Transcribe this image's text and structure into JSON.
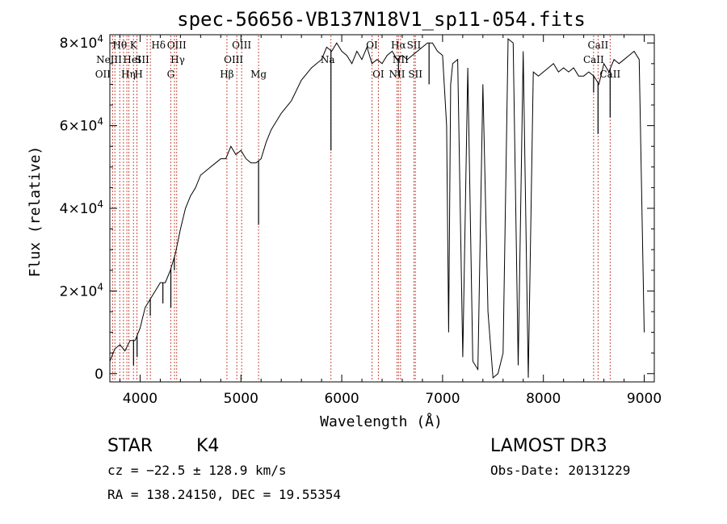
{
  "chart_data": {
    "type": "line",
    "title": "spec-56656-VB137N18V1_sp11-054.fits",
    "xlabel": "Wavelength (Å)",
    "ylabel": "Flux (relative)",
    "xlim": [
      3700,
      9100
    ],
    "ylim": [
      -2000,
      82000
    ],
    "xticks": [
      {
        "v": 4000,
        "label": "4000"
      },
      {
        "v": 5000,
        "label": "5000"
      },
      {
        "v": 6000,
        "label": "6000"
      },
      {
        "v": 7000,
        "label": "7000"
      },
      {
        "v": 8000,
        "label": "8000"
      },
      {
        "v": 9000,
        "label": "9000"
      }
    ],
    "yticks": [
      {
        "v": 0,
        "label": "0"
      },
      {
        "v": 20000,
        "mant": "2",
        "exp": "4"
      },
      {
        "v": 40000,
        "mant": "4",
        "exp": "4"
      },
      {
        "v": 60000,
        "mant": "6",
        "exp": "4"
      },
      {
        "v": 80000,
        "mant": "8",
        "exp": "4"
      }
    ],
    "spectrum": {
      "name": "flux",
      "x": [
        3700,
        3750,
        3800,
        3850,
        3900,
        3950,
        4000,
        4050,
        4100,
        4150,
        4200,
        4250,
        4300,
        4350,
        4400,
        4450,
        4500,
        4550,
        4600,
        4650,
        4700,
        4750,
        4800,
        4850,
        4900,
        4950,
        5000,
        5050,
        5100,
        5150,
        5200,
        5250,
        5300,
        5400,
        5500,
        5600,
        5700,
        5800,
        5850,
        5900,
        5950,
        6000,
        6050,
        6100,
        6150,
        6200,
        6250,
        6300,
        6350,
        6400,
        6450,
        6500,
        6550,
        6600,
        6650,
        6700,
        6750,
        6800,
        6850,
        6900,
        6950,
        7000,
        7040,
        7060,
        7080,
        7100,
        7150,
        7200,
        7250,
        7300,
        7350,
        7400,
        7450,
        7500,
        7550,
        7600,
        7650,
        7700,
        7750,
        7800,
        7850,
        7900,
        7950,
        8000,
        8050,
        8100,
        8150,
        8200,
        8250,
        8300,
        8350,
        8400,
        8450,
        8500,
        8550,
        8600,
        8650,
        8700,
        8750,
        8800,
        8850,
        8900,
        8950,
        9000
      ],
      "y": [
        3000,
        6000,
        7000,
        5500,
        8000,
        8000,
        11000,
        16000,
        18000,
        20000,
        22000,
        22000,
        25000,
        29000,
        35000,
        40000,
        43000,
        45000,
        48000,
        49000,
        50000,
        51000,
        52000,
        52000,
        55000,
        53000,
        54000,
        52000,
        51000,
        51000,
        52000,
        56000,
        59000,
        63000,
        66000,
        71000,
        74000,
        76000,
        79000,
        78000,
        80000,
        78000,
        77000,
        75000,
        78000,
        76000,
        79000,
        75000,
        76000,
        75000,
        77000,
        78000,
        76000,
        77000,
        76000,
        77000,
        78000,
        79000,
        80000,
        80000,
        78000,
        77000,
        60000,
        10000,
        70000,
        75000,
        76000,
        4000,
        74000,
        3000,
        1000,
        70000,
        15000,
        -1000,
        0,
        5000,
        81000,
        80000,
        2000,
        78000,
        -1000,
        73000,
        72000,
        73000,
        74000,
        75000,
        73000,
        74000,
        73000,
        74000,
        72000,
        72000,
        73000,
        72000,
        70000,
        75000,
        73000,
        76000,
        75000,
        76000,
        77000,
        78000,
        76000,
        10000
      ]
    },
    "dips": [
      {
        "x": 3935,
        "y": 2000
      },
      {
        "x": 3970,
        "y": 4000
      },
      {
        "x": 4101,
        "y": 14000
      },
      {
        "x": 4226,
        "y": 17000
      },
      {
        "x": 4305,
        "y": 16000
      },
      {
        "x": 4340,
        "y": 25000
      },
      {
        "x": 5175,
        "y": 36000
      },
      {
        "x": 5893,
        "y": 54000
      },
      {
        "x": 6563,
        "y": 72000
      },
      {
        "x": 6866,
        "y": 70000
      },
      {
        "x": 8498,
        "y": 68000
      },
      {
        "x": 8542,
        "y": 58000
      },
      {
        "x": 8662,
        "y": 62000
      }
    ],
    "lines": [
      {
        "x": 3727,
        "label": "OII",
        "row": 2,
        "dx": -12
      },
      {
        "x": 3750,
        "label": "",
        "row": 0,
        "dx": 0
      },
      {
        "x": 3798,
        "label": "Hθ",
        "row": 0,
        "dx": 0
      },
      {
        "x": 3835,
        "label": "Hη",
        "row": 2,
        "dx": 6
      },
      {
        "x": 3869,
        "label": "NeIII",
        "row": 1,
        "dx": -22
      },
      {
        "x": 3889,
        "label": "HeI",
        "row": 1,
        "dx": 4
      },
      {
        "x": 3934,
        "label": "K",
        "row": 0,
        "dx": 0
      },
      {
        "x": 3969,
        "label": "H",
        "row": 2,
        "dx": 2
      },
      {
        "x": 4069,
        "label": "SII",
        "row": 1,
        "dx": -6
      },
      {
        "x": 4102,
        "label": "Hδ",
        "row": 0,
        "dx": 10
      },
      {
        "x": 4304,
        "label": "G",
        "row": 2,
        "dx": 0
      },
      {
        "x": 4341,
        "label": "Hγ",
        "row": 1,
        "dx": 4
      },
      {
        "x": 4363,
        "label": "OIII",
        "row": 0,
        "dx": 0
      },
      {
        "x": 4861,
        "label": "Hβ",
        "row": 2,
        "dx": 0
      },
      {
        "x": 4959,
        "label": "OIII",
        "row": 1,
        "dx": -4
      },
      {
        "x": 5007,
        "label": "OIII",
        "row": 0,
        "dx": 0
      },
      {
        "x": 5175,
        "label": "Mg",
        "row": 2,
        "dx": 0
      },
      {
        "x": 5893,
        "label": "Na",
        "row": 1,
        "dx": -4
      },
      {
        "x": 6300,
        "label": "OI",
        "row": 0,
        "dx": 0
      },
      {
        "x": 6363,
        "label": "OI",
        "row": 2,
        "dx": 0
      },
      {
        "x": 6548,
        "label": "NII",
        "row": 2,
        "dx": 0
      },
      {
        "x": 6563,
        "label": "Hα",
        "row": 0,
        "dx": 0
      },
      {
        "x": 6583,
        "label": "NII",
        "row": 1,
        "dx": 0
      },
      {
        "x": 6716,
        "label": "SII",
        "row": 0,
        "dx": 0
      },
      {
        "x": 6730,
        "label": "SII",
        "row": 2,
        "dx": 0
      },
      {
        "x": 8498,
        "label": "CaII",
        "row": 1,
        "dx": 0
      },
      {
        "x": 8542,
        "label": "CaII",
        "row": 0,
        "dx": 0
      },
      {
        "x": 8662,
        "label": "CaII",
        "row": 2,
        "dx": 0
      }
    ]
  },
  "info": {
    "object_class": "STAR",
    "subclass": "K4",
    "survey": "LAMOST DR3",
    "cz": "cz = −22.5 ± 128.9 km/s",
    "obs_date": "Obs-Date: 20131229",
    "coords": "RA = 138.24150, DEC =  19.55354"
  }
}
